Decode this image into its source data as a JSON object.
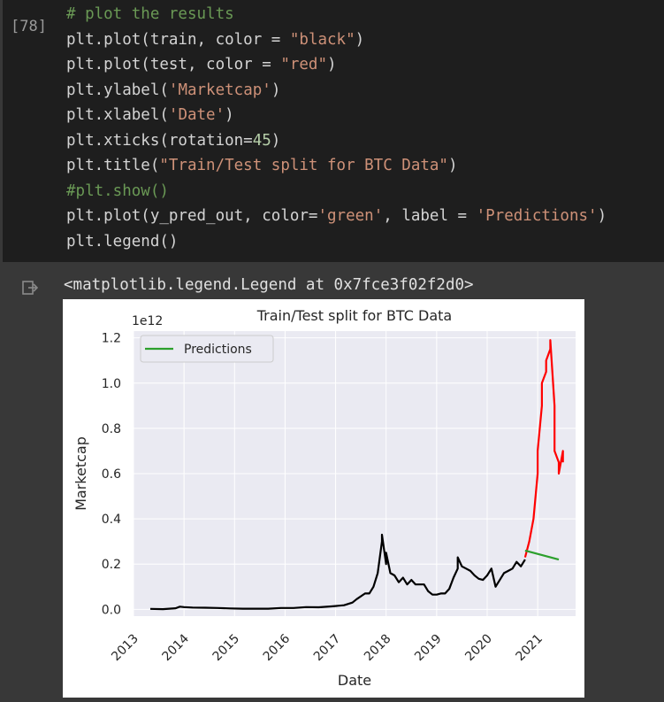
{
  "cell": {
    "execution_count": "[78]",
    "code_lines": [
      [
        {
          "t": "# plot the results",
          "c": "comment"
        }
      ],
      [
        {
          "t": "plt.plot(train, color = "
        },
        {
          "t": "\"black\"",
          "c": "str"
        },
        {
          "t": ")"
        }
      ],
      [
        {
          "t": "plt.plot(test, color = "
        },
        {
          "t": "\"red\"",
          "c": "str"
        },
        {
          "t": ")"
        }
      ],
      [
        {
          "t": "plt.ylabel("
        },
        {
          "t": "'Marketcap'",
          "c": "str"
        },
        {
          "t": ")"
        }
      ],
      [
        {
          "t": "plt.xlabel("
        },
        {
          "t": "'Date'",
          "c": "str"
        },
        {
          "t": ")"
        }
      ],
      [
        {
          "t": "plt.xticks(rotation="
        },
        {
          "t": "45",
          "c": "num"
        },
        {
          "t": ")"
        }
      ],
      [
        {
          "t": "plt.title("
        },
        {
          "t": "\"Train/Test split for BTC Data\"",
          "c": "str"
        },
        {
          "t": ")"
        }
      ],
      [
        {
          "t": "#plt.show()",
          "c": "comment"
        }
      ],
      [
        {
          "t": "plt.plot(y_pred_out, color="
        },
        {
          "t": "'green'",
          "c": "str"
        },
        {
          "t": ", label = "
        },
        {
          "t": "'Predictions'",
          "c": "str"
        },
        {
          "t": ")"
        }
      ],
      [
        {
          "t": "plt.legend()"
        }
      ]
    ]
  },
  "output": {
    "icon": "output-redirect-icon",
    "text": "<matplotlib.legend.Legend at 0x7fce3f02f2d0>"
  },
  "chart_data": {
    "type": "line",
    "title": "Train/Test split for BTC Data",
    "xlabel": "Date",
    "ylabel": "Marketcap",
    "y_offset_text": "1e12",
    "x_ticks": [
      "2013",
      "2014",
      "2015",
      "2016",
      "2017",
      "2018",
      "2019",
      "2020",
      "2021"
    ],
    "y_ticks": [
      "0.0",
      "0.2",
      "0.4",
      "0.6",
      "0.8",
      "1.0",
      "1.2"
    ],
    "ylim": [
      -0.03,
      1.23
    ],
    "xlim": [
      "2013-01",
      "2021-10"
    ],
    "grid": true,
    "legend": {
      "placement": "upper-left",
      "entries": [
        "Predictions"
      ]
    },
    "colors": {
      "train": "#000000",
      "test": "#ff0000",
      "pred": "#2ca02c",
      "axes_bg": "#eaeaf2"
    },
    "series": [
      {
        "color": "black",
        "points": [
          [
            "2013-05",
            0.002
          ],
          [
            "2013-08",
            0.001
          ],
          [
            "2013-11",
            0.005
          ],
          [
            "2013-12",
            0.012
          ],
          [
            "2014-01",
            0.01
          ],
          [
            "2014-03",
            0.008
          ],
          [
            "2014-06",
            0.007
          ],
          [
            "2014-09",
            0.006
          ],
          [
            "2014-12",
            0.004
          ],
          [
            "2015-03",
            0.003
          ],
          [
            "2015-06",
            0.003
          ],
          [
            "2015-09",
            0.003
          ],
          [
            "2015-12",
            0.006
          ],
          [
            "2016-03",
            0.006
          ],
          [
            "2016-06",
            0.01
          ],
          [
            "2016-09",
            0.009
          ],
          [
            "2016-12",
            0.013
          ],
          [
            "2017-03",
            0.018
          ],
          [
            "2017-05",
            0.03
          ],
          [
            "2017-06",
            0.045
          ],
          [
            "2017-08",
            0.07
          ],
          [
            "2017-09",
            0.07
          ],
          [
            "2017-10",
            0.1
          ],
          [
            "2017-11",
            0.16
          ],
          [
            "2017-12",
            0.3
          ],
          [
            "2017-12",
            0.33
          ],
          [
            "2018-01",
            0.2
          ],
          [
            "2018-01",
            0.25
          ],
          [
            "2018-02",
            0.16
          ],
          [
            "2018-03",
            0.15
          ],
          [
            "2018-04",
            0.12
          ],
          [
            "2018-05",
            0.14
          ],
          [
            "2018-06",
            0.11
          ],
          [
            "2018-07",
            0.13
          ],
          [
            "2018-08",
            0.11
          ],
          [
            "2018-09",
            0.11
          ],
          [
            "2018-10",
            0.11
          ],
          [
            "2018-11",
            0.08
          ],
          [
            "2018-12",
            0.065
          ],
          [
            "2019-01",
            0.065
          ],
          [
            "2019-02",
            0.07
          ],
          [
            "2019-03",
            0.07
          ],
          [
            "2019-04",
            0.09
          ],
          [
            "2019-05",
            0.14
          ],
          [
            "2019-06",
            0.18
          ],
          [
            "2019-06",
            0.23
          ],
          [
            "2019-07",
            0.19
          ],
          [
            "2019-08",
            0.18
          ],
          [
            "2019-09",
            0.17
          ],
          [
            "2019-10",
            0.15
          ],
          [
            "2019-11",
            0.135
          ],
          [
            "2019-12",
            0.13
          ],
          [
            "2020-01",
            0.15
          ],
          [
            "2020-02",
            0.18
          ],
          [
            "2020-03",
            0.1
          ],
          [
            "2020-04",
            0.13
          ],
          [
            "2020-05",
            0.16
          ],
          [
            "2020-06",
            0.17
          ],
          [
            "2020-07",
            0.18
          ],
          [
            "2020-08",
            0.21
          ],
          [
            "2020-09",
            0.19
          ],
          [
            "2020-10",
            0.22
          ]
        ]
      },
      {
        "color": "red",
        "points": [
          [
            "2020-10",
            0.23
          ],
          [
            "2020-11",
            0.3
          ],
          [
            "2020-12",
            0.4
          ],
          [
            "2021-01",
            0.6
          ],
          [
            "2021-01",
            0.7
          ],
          [
            "2021-02",
            0.9
          ],
          [
            "2021-02",
            1.0
          ],
          [
            "2021-03",
            1.05
          ],
          [
            "2021-03",
            1.1
          ],
          [
            "2021-04",
            1.15
          ],
          [
            "2021-04",
            1.19
          ],
          [
            "2021-05",
            0.9
          ],
          [
            "2021-05",
            0.7
          ],
          [
            "2021-06",
            0.65
          ],
          [
            "2021-06",
            0.6
          ],
          [
            "2021-07",
            0.7
          ],
          [
            "2021-07",
            0.65
          ]
        ]
      },
      {
        "name": "Predictions",
        "color": "green",
        "points": [
          [
            "2020-10",
            0.26
          ],
          [
            "2021-06",
            0.22
          ]
        ]
      }
    ]
  }
}
